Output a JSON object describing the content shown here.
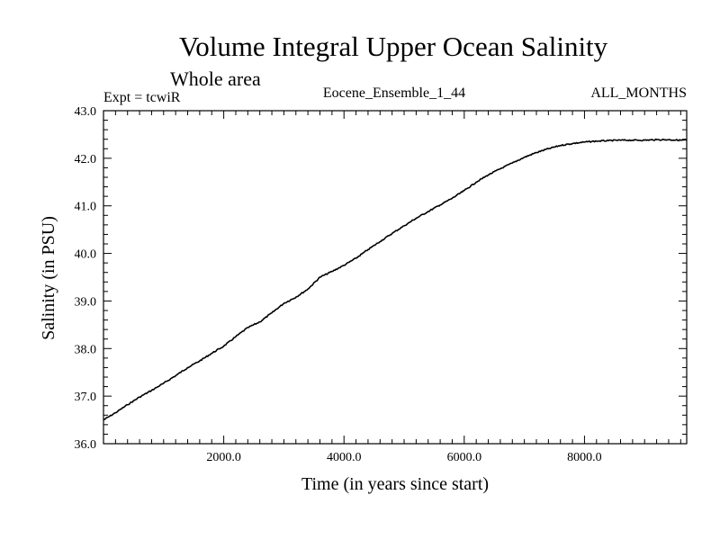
{
  "chart_data": {
    "type": "line",
    "title": "Volume Integral Upper Ocean Salinity",
    "subtitle": "Whole area",
    "info_left": "Expt = tcwiR",
    "info_center": "Eocene_Ensemble_1_44",
    "info_right": "ALL_MONTHS",
    "xlabel": "Time (in years since start)",
    "ylabel": "Salinity (in PSU)",
    "xlim": [
      0,
      9700
    ],
    "ylim": [
      36.0,
      43.0
    ],
    "x_ticks": [
      2000,
      4000,
      6000,
      8000
    ],
    "x_tick_labels": [
      "2000.0",
      "4000.0",
      "6000.0",
      "8000.0"
    ],
    "y_ticks": [
      36,
      37,
      38,
      39,
      40,
      41,
      42,
      43
    ],
    "y_tick_labels": [
      "36.0",
      "37.0",
      "38.0",
      "39.0",
      "40.0",
      "41.0",
      "42.0",
      "43.0"
    ],
    "grid": false,
    "line_color": "#000000",
    "series": [
      {
        "x": [
          0,
          200,
          400,
          600,
          800,
          1000,
          1200,
          1400,
          1600,
          1800,
          2000,
          2200,
          2400,
          2600,
          2800,
          3000,
          3200,
          3400,
          3600,
          3800,
          4000,
          4200,
          4400,
          4600,
          4800,
          5000,
          5200,
          5400,
          5600,
          5800,
          6000,
          6200,
          6400,
          6600,
          6800,
          7000,
          7200,
          7400,
          7600,
          7800,
          8000,
          8200,
          8400,
          8600,
          8800,
          9000,
          9200,
          9400,
          9600,
          9700
        ],
        "values": [
          36.5,
          36.65,
          36.82,
          36.98,
          37.12,
          37.27,
          37.43,
          37.6,
          37.74,
          37.9,
          38.05,
          38.25,
          38.44,
          38.56,
          38.75,
          38.95,
          39.08,
          39.25,
          39.5,
          39.62,
          39.75,
          39.9,
          40.08,
          40.25,
          40.42,
          40.58,
          40.74,
          40.88,
          41.02,
          41.16,
          41.32,
          41.5,
          41.65,
          41.78,
          41.9,
          42.02,
          42.12,
          42.2,
          42.27,
          42.31,
          42.34,
          42.36,
          42.37,
          42.38,
          42.38,
          42.38,
          42.39,
          42.39,
          42.38,
          42.38
        ]
      }
    ]
  }
}
